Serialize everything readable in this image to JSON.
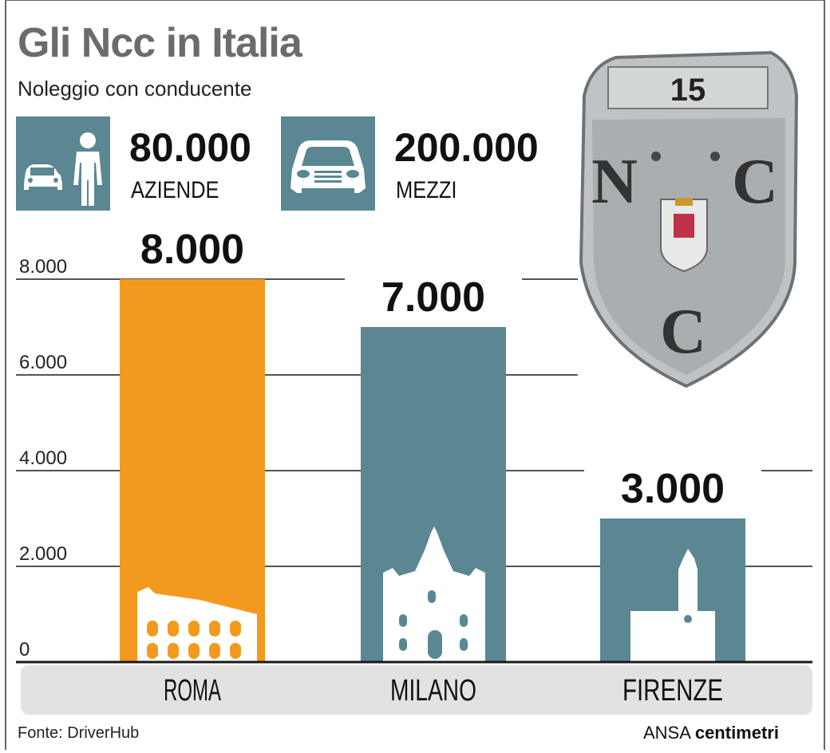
{
  "title": "Gli Ncc in Italia",
  "subtitle": "Noleggio con conducente",
  "kpis": [
    {
      "value": "80.000",
      "label": "AZIENDE",
      "icon": "car-and-person-icon"
    },
    {
      "value": "200.000",
      "label": "MEZZI",
      "icon": "car-front-icon"
    }
  ],
  "badge": {
    "number": "15",
    "letter_n": "N",
    "letter_c1": "C",
    "letter_c2": "C"
  },
  "colors": {
    "roma": "#f39a1e",
    "teal": "#5a8792",
    "axis_band": "#e2e2e2"
  },
  "chart_data": {
    "type": "bar",
    "categories": [
      "ROMA",
      "MILANO",
      "FIRENZE"
    ],
    "values": [
      8000,
      7000,
      3000
    ],
    "value_labels": [
      "8.000",
      "7.000",
      "3.000"
    ],
    "ylim": [
      0,
      8000
    ],
    "yticks": [
      0,
      2000,
      4000,
      6000,
      8000
    ],
    "ytick_labels": [
      "0",
      "2.000",
      "4.000",
      "6.000",
      "8.000"
    ],
    "grid": true,
    "xlabel": "",
    "ylabel": ""
  },
  "source": "Fonte: DriverHub",
  "credit": {
    "agency": "ANSA",
    "brand": "centimetri"
  }
}
